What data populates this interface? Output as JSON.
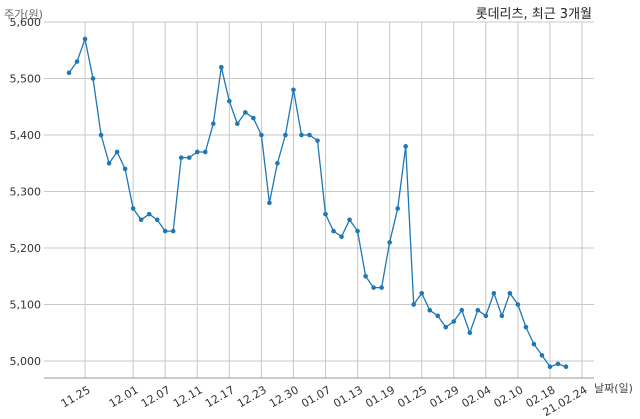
{
  "chart_data": {
    "type": "line",
    "title": "롯데리츠, 최근 3개월",
    "ylabel": "주가(원)",
    "xlabel": "날짜(일)",
    "ylim": [
      4970,
      5600
    ],
    "yticks": [
      5000,
      5100,
      5200,
      5300,
      5400,
      5500,
      5600
    ],
    "ytick_labels": [
      "5,000",
      "5,100",
      "5,200",
      "5,300",
      "5,400",
      "5,500",
      "5,600"
    ],
    "xtick_labels": [
      "11.25",
      "12.01",
      "12.07",
      "12.11",
      "12.17",
      "12.23",
      "12.30",
      "01.07",
      "01.13",
      "01.19",
      "01.25",
      "01.29",
      "02.04",
      "02.10",
      "02.18",
      "21.02.24"
    ],
    "xtick_positions": [
      2,
      8,
      12,
      16,
      20,
      24,
      28,
      32,
      36,
      40,
      44,
      48,
      52,
      56,
      60,
      64
    ],
    "grid": true,
    "series": [
      {
        "name": "",
        "color": "#1f77b4",
        "values": [
          5510,
          5530,
          5570,
          5500,
          5400,
          5350,
          5370,
          5340,
          5270,
          5250,
          5260,
          5250,
          5230,
          5230,
          5360,
          5360,
          5370,
          5370,
          5420,
          5520,
          5460,
          5420,
          5440,
          5430,
          5400,
          5280,
          5350,
          5400,
          5480,
          5400,
          5400,
          5390,
          5260,
          5230,
          5220,
          5250,
          5230,
          5150,
          5130,
          5130,
          5210,
          5270,
          5380,
          5100,
          5120,
          5090,
          5080,
          5060,
          5070,
          5090,
          5050,
          5090,
          5080,
          5120,
          5080,
          5120,
          5100,
          5060,
          5030,
          5010,
          4990,
          4995,
          4990
        ]
      }
    ]
  }
}
